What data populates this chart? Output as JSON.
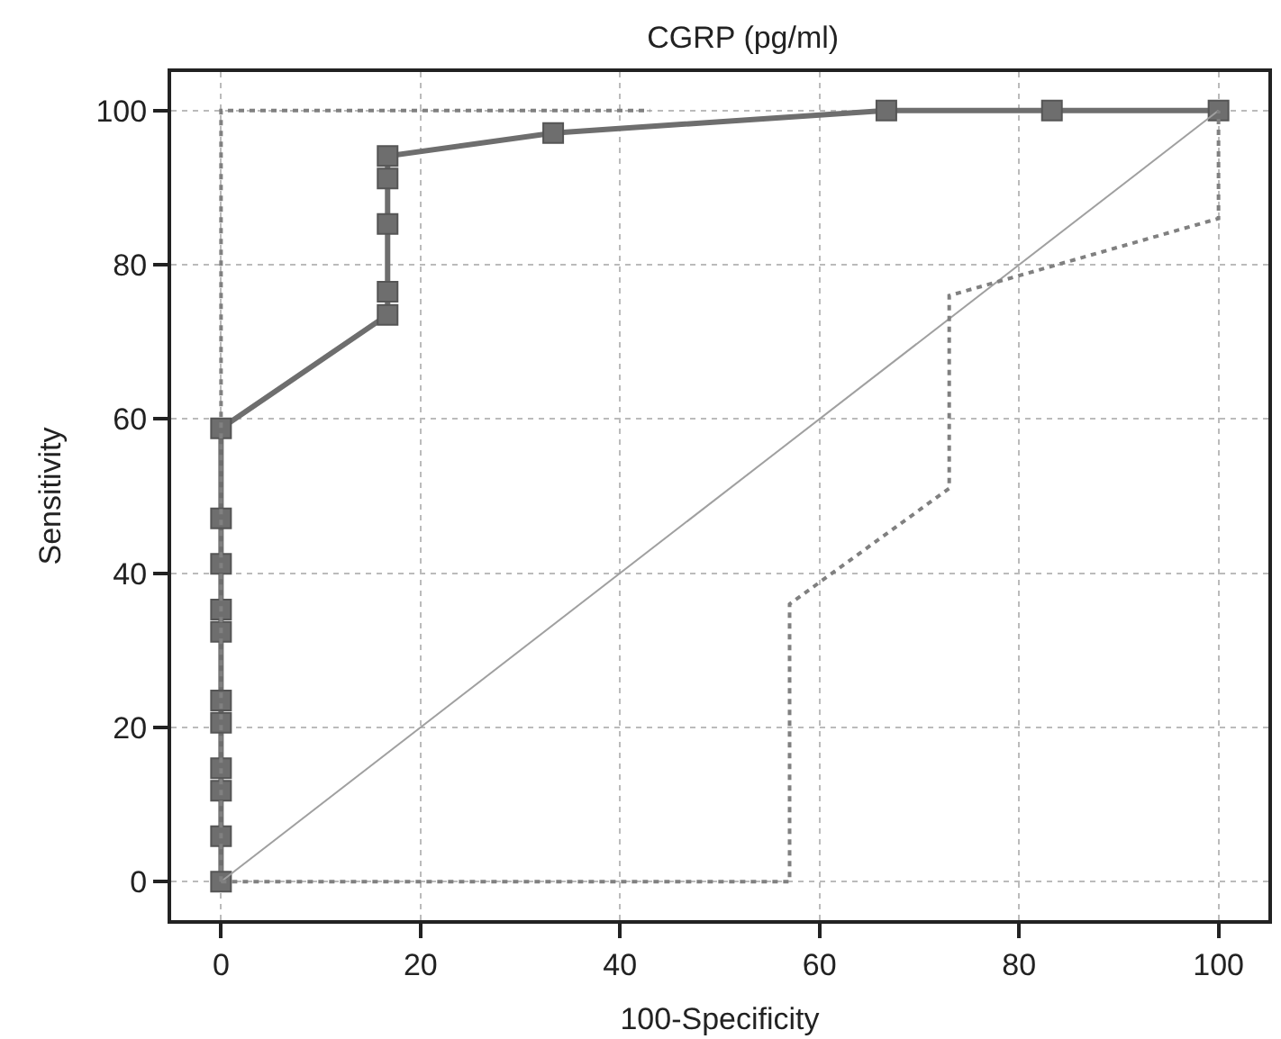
{
  "chart_data": {
    "type": "line",
    "title": "CGRP (pg/ml)",
    "xlabel": "100-Specificity",
    "ylabel": "Sensitivity",
    "xlim": [
      -5,
      105
    ],
    "ylim": [
      -5,
      105
    ],
    "xticks": [
      0,
      20,
      40,
      60,
      80,
      100
    ],
    "yticks": [
      0,
      20,
      40,
      60,
      80,
      100
    ],
    "grid": true,
    "series": [
      {
        "color": "#6e6e6e",
        "marker": "square",
        "line_style": "solid",
        "x": [
          0,
          0,
          0,
          0,
          0,
          0,
          0,
          0,
          0,
          0,
          0,
          16.7,
          16.7,
          16.7,
          16.7,
          16.7,
          33.3,
          66.7,
          83.3,
          100
        ],
        "values": [
          0,
          5.9,
          11.8,
          14.7,
          20.6,
          23.5,
          32.4,
          35.3,
          41.2,
          47.1,
          58.8,
          73.5,
          76.5,
          85.3,
          91.2,
          94.1,
          97.1,
          100,
          100,
          100
        ]
      },
      {
        "color": "#a0a0a0",
        "marker": "none",
        "line_style": "solid",
        "x": [
          0,
          100
        ],
        "values": [
          0,
          100
        ]
      },
      {
        "color": "#808080",
        "marker": "none",
        "line_style": "dotted",
        "x": [
          0,
          0,
          43
        ],
        "values": [
          0,
          100,
          100
        ]
      },
      {
        "color": "#808080",
        "marker": "none",
        "line_style": "dotted",
        "x": [
          0,
          57,
          57,
          73,
          73,
          100,
          100
        ],
        "values": [
          0,
          0,
          36,
          51,
          76,
          86,
          100
        ]
      }
    ]
  }
}
